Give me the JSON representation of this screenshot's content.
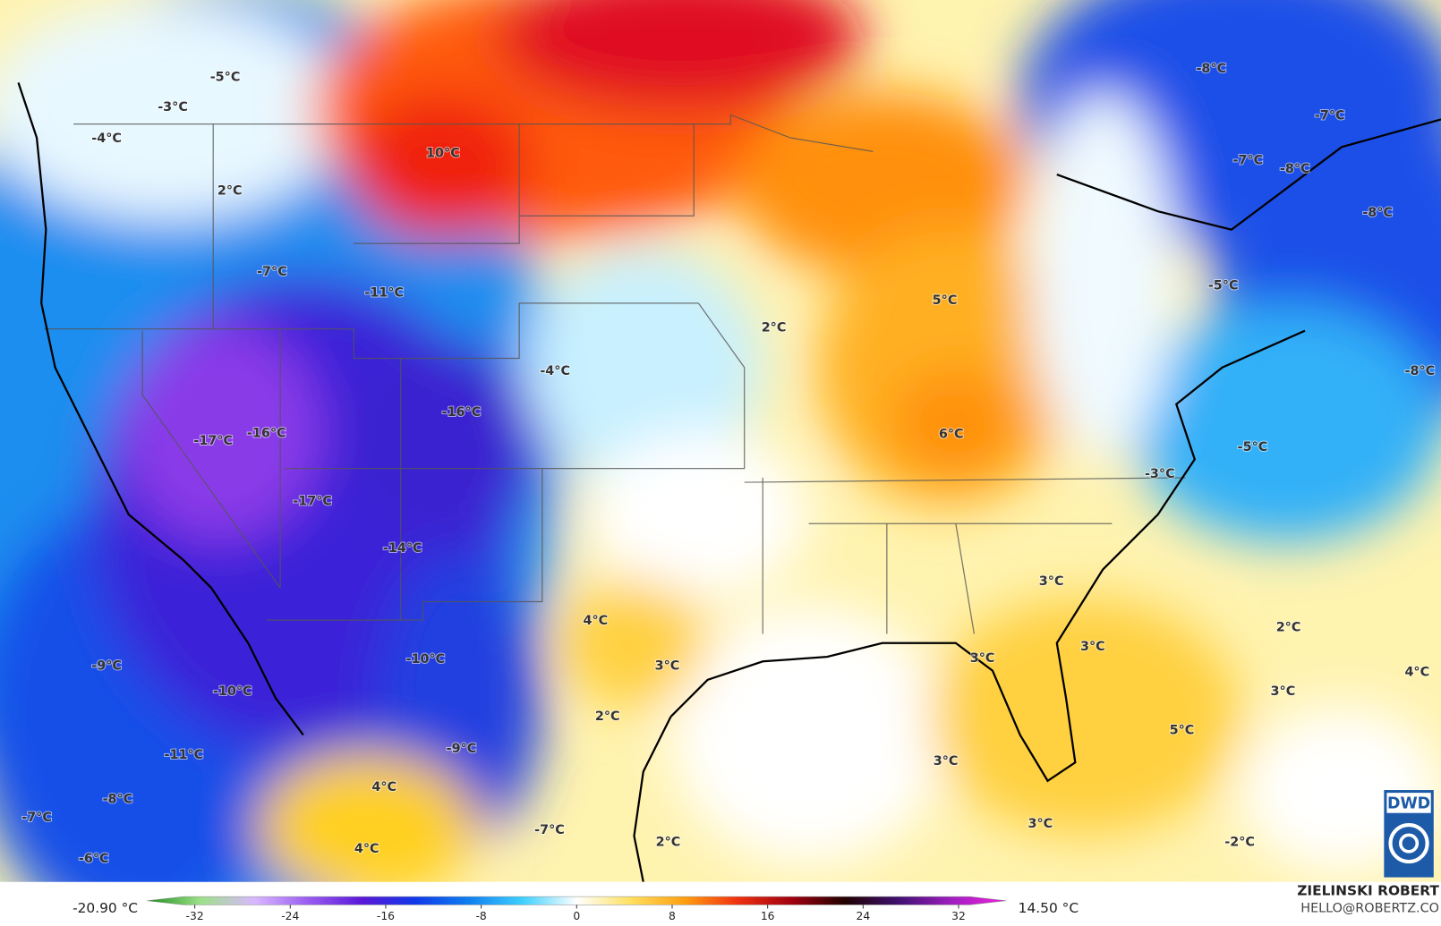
{
  "map_labels": [
    "-5°C",
    "-3°C",
    "-4°C",
    "10°C",
    "2°C",
    "-7°C",
    "-11°C",
    "2°C",
    "5°C",
    "-4°C",
    "-16°C",
    "-17°C",
    "-16°C",
    "6°C",
    "-17°C",
    "-14°C",
    "-3°C",
    "3°C",
    "4°C",
    "3°C",
    "-10°C",
    "-9°C",
    "-10°C",
    "2°C",
    "3°C",
    "3°C",
    "2°C",
    "3°C",
    "4°C",
    "5°C",
    "-11°C",
    "-9°C",
    "3°C",
    "4°C",
    "-8°C",
    "-7°C",
    "-7°C",
    "2°C",
    "3°C",
    "4°C",
    "-6°C",
    "-2°C",
    "-8°C",
    "-7°C",
    "-7°C",
    "-8°C",
    "-8°C",
    "-5°C",
    "-8°C",
    "-5°C"
  ],
  "colorbar": {
    "min_label": "-20.90 °C",
    "max_label": "14.50 °C",
    "lim": [
      -36,
      36
    ],
    "ticks": [
      -32,
      -24,
      -16,
      -8,
      0,
      8,
      16,
      24,
      32
    ],
    "colors": [
      "#1a8f1a",
      "#9ee08a",
      "#d9b8ff",
      "#9a5cf0",
      "#5a18d8",
      "#1038e8",
      "#1080f0",
      "#40d0ff",
      "#ffffff",
      "#ffe060",
      "#ffa010",
      "#f03010",
      "#a00010",
      "#200000",
      "#401070",
      "#a020c0",
      "#f020e0"
    ]
  },
  "credit": {
    "name": "ZIELINSKI ROBERT",
    "contact": "HELLO@ROBERTZ.CO"
  },
  "logo": "DWD"
}
